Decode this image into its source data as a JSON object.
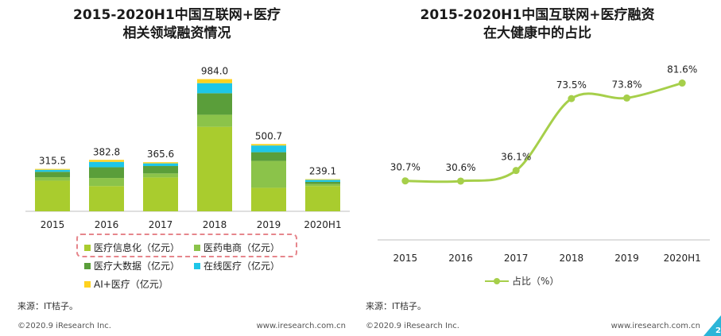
{
  "left": {
    "title_line1": "2015-2020H1中国互联网+医疗",
    "title_line2": "相关领域融资情况",
    "legend_items": [
      "医疗信息化（亿元）",
      "医药电商（亿元）",
      "医疗大数据（亿元）",
      "在线医疗（亿元）",
      "AI+医疗（亿元）"
    ],
    "source": "来源：IT桔子。",
    "copyright": "©2020.9 iResearch Inc.",
    "website": "www.iresearch.com.cn"
  },
  "right": {
    "title_line1": "2015-2020H1中国互联网+医疗融资",
    "title_line2": "在大健康中的占比",
    "legend_label": "占比（%）",
    "source": "来源：IT桔子。",
    "copyright": "©2020.9 iResearch Inc.",
    "website": "www.iresearch.com.cn",
    "page_number": "2"
  },
  "colors": {
    "medical_info": "#a9cc2e",
    "pharma_ecommerce": "#8bc34a",
    "medical_bigdata": "#5a9e3a",
    "online_medical": "#1ec6e8",
    "ai_medical": "#ffd21f",
    "line": "#a6cf4a",
    "corner": "#2bb5d8"
  },
  "chart_data": [
    {
      "type": "bar",
      "stacked": true,
      "title": "2015-2020H1中国互联网+医疗相关领域融资情况",
      "categories": [
        "2015",
        "2016",
        "2017",
        "2018",
        "2019",
        "2020H1"
      ],
      "totals": [
        315.5,
        382.8,
        365.6,
        984.0,
        500.7,
        239.1
      ],
      "total_labels": [
        "315.5",
        "382.8",
        "365.6",
        "984.0",
        "500.7",
        "239.1"
      ],
      "series": [
        {
          "name": "医疗信息化（亿元）",
          "values": [
            228,
            188,
            252,
            629,
            175,
            188
          ]
        },
        {
          "name": "医药电商（亿元）",
          "values": [
            26,
            60,
            30,
            90,
            200,
            15
          ]
        },
        {
          "name": "医疗大数据（亿元）",
          "values": [
            40,
            80,
            55,
            160,
            65,
            16
          ]
        },
        {
          "name": "在线医疗（亿元）",
          "values": [
            15,
            40,
            20,
            75,
            50,
            15
          ]
        },
        {
          "name": "AI+医疗（亿元）",
          "values": [
            6.5,
            14.8,
            8.6,
            30,
            10.7,
            5.1
          ]
        }
      ],
      "ylim": [
        0,
        1100
      ],
      "legend_position": "bottom"
    },
    {
      "type": "line",
      "title": "2015-2020H1中国互联网+医疗融资在大健康中的占比",
      "categories": [
        "2015",
        "2016",
        "2017",
        "2018",
        "2019",
        "2020H1"
      ],
      "series": [
        {
          "name": "占比（%）",
          "values": [
            30.7,
            30.6,
            36.1,
            73.5,
            73.8,
            81.6
          ]
        }
      ],
      "value_labels": [
        "30.7%",
        "30.6%",
        "36.1%",
        "73.5%",
        "73.8%",
        "81.6%"
      ],
      "ylim": [
        0,
        100
      ],
      "legend_position": "bottom"
    }
  ]
}
